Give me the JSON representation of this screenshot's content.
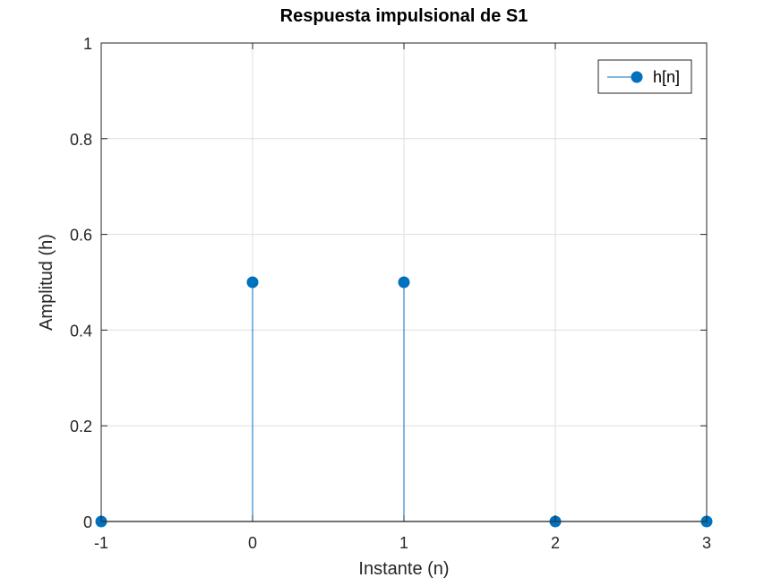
{
  "chart_data": {
    "type": "stem",
    "title": "Respuesta impulsional de S1",
    "xlabel": "Instante (n)",
    "ylabel": "Amplitud (h)",
    "xlim": [
      -1,
      3
    ],
    "ylim": [
      0,
      1
    ],
    "xticks": [
      -1,
      0,
      1,
      2,
      3
    ],
    "yticks": [
      0,
      0.2,
      0.4,
      0.6,
      0.8,
      1
    ],
    "xtick_labels": [
      "-1",
      "0",
      "1",
      "2",
      "3"
    ],
    "ytick_labels": [
      "0",
      "0.2",
      "0.4",
      "0.6",
      "0.8",
      "1"
    ],
    "grid": true,
    "legend_position": "top-right",
    "series": [
      {
        "name": "h[n]",
        "color": "#0072bd",
        "x": [
          -1,
          0,
          1,
          2,
          3
        ],
        "y": [
          0,
          0.5,
          0.5,
          0,
          0
        ]
      }
    ]
  }
}
